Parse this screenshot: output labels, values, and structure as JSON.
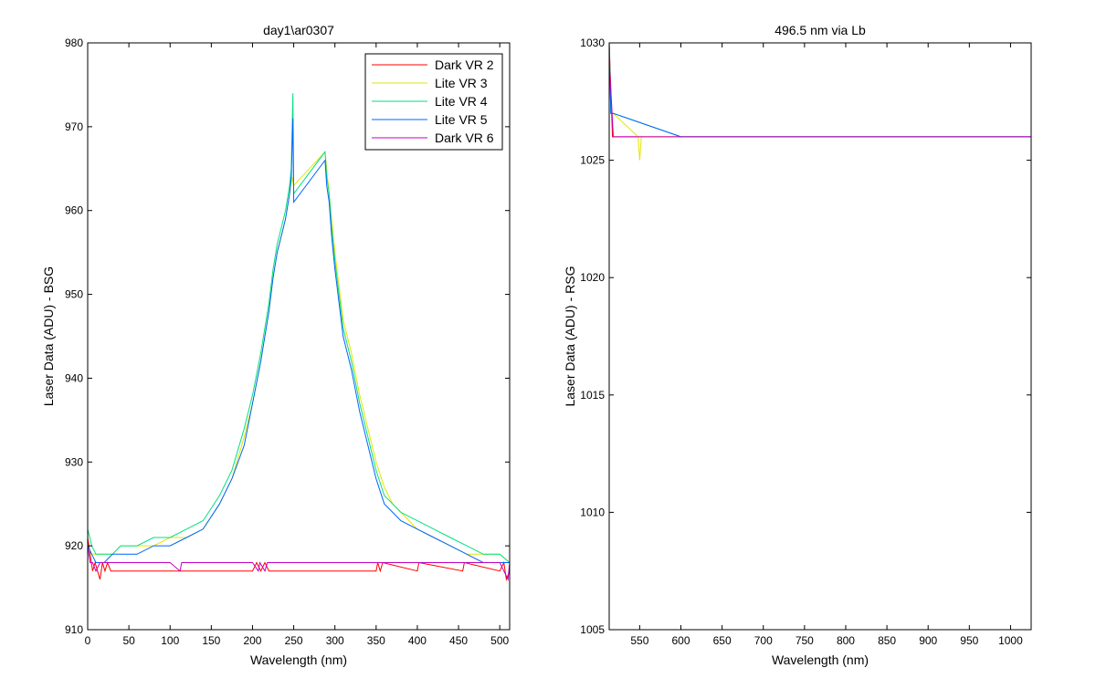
{
  "chart_data": [
    {
      "type": "line",
      "title": "day1\\ar0307",
      "xlabel": "Wavelength (nm)",
      "ylabel": "Laser Data (ADU) - BSG",
      "xlim": [
        0,
        512
      ],
      "ylim": [
        910,
        980
      ],
      "x_ticks": [
        0,
        50,
        100,
        150,
        200,
        250,
        300,
        350,
        400,
        450,
        500
      ],
      "y_ticks": [
        910,
        920,
        930,
        940,
        950,
        960,
        970,
        980
      ],
      "legend_position": "top-right",
      "series": [
        {
          "name": "Dark VR 2",
          "color": "#ff0000",
          "x": [
            0,
            3,
            6,
            9,
            12,
            15,
            18,
            21,
            24,
            28,
            35,
            60,
            100,
            150,
            200,
            205,
            210,
            215,
            220,
            250,
            300,
            350,
            352,
            355,
            358,
            400,
            402,
            455,
            457,
            500,
            505,
            508,
            512
          ],
          "y": [
            921,
            919,
            917,
            918,
            917,
            916,
            918,
            917,
            918,
            917,
            917,
            917,
            917,
            917,
            917,
            918,
            917,
            918,
            917,
            917,
            917,
            917,
            918,
            917,
            918,
            917,
            918,
            917,
            918,
            917,
            918,
            916,
            917
          ]
        },
        {
          "name": "Lite VR 3",
          "color": "#e6e600",
          "x": [
            0,
            5,
            10,
            20,
            30,
            40,
            60,
            80,
            100,
            120,
            140,
            160,
            175,
            190,
            200,
            210,
            220,
            225,
            230,
            235,
            240,
            245,
            248,
            250,
            288,
            290,
            295,
            300,
            305,
            310,
            320,
            330,
            340,
            350,
            360,
            370,
            380,
            400,
            420,
            440,
            460,
            480,
            500,
            512
          ],
          "y": [
            920,
            919,
            919,
            919,
            919,
            920,
            920,
            920,
            921,
            921,
            922,
            925,
            928,
            933,
            937,
            942,
            948,
            952,
            955,
            957,
            959,
            962,
            964,
            963,
            967,
            965,
            960,
            955,
            951,
            947,
            943,
            938,
            934,
            930,
            927,
            925,
            924,
            922,
            921,
            920,
            919,
            919,
            919,
            918
          ]
        },
        {
          "name": "Lite VR 4",
          "color": "#00e080",
          "x": [
            0,
            5,
            10,
            20,
            30,
            40,
            60,
            80,
            100,
            120,
            140,
            160,
            175,
            190,
            200,
            210,
            220,
            225,
            230,
            235,
            240,
            245,
            247,
            249,
            250,
            288,
            290,
            293,
            296,
            300,
            305,
            310,
            320,
            330,
            340,
            350,
            360,
            370,
            380,
            400,
            420,
            440,
            460,
            480,
            500,
            512
          ],
          "y": [
            922,
            920,
            919,
            919,
            919,
            920,
            920,
            921,
            921,
            922,
            923,
            926,
            929,
            934,
            938,
            943,
            949,
            953,
            956,
            958,
            960,
            963,
            965,
            974,
            962,
            967,
            964,
            962,
            958,
            954,
            950,
            946,
            942,
            937,
            933,
            929,
            926,
            925,
            924,
            923,
            922,
            921,
            920,
            919,
            919,
            918
          ]
        },
        {
          "name": "Lite VR 5",
          "color": "#0064ff",
          "x": [
            0,
            5,
            10,
            20,
            30,
            40,
            60,
            80,
            100,
            120,
            140,
            160,
            175,
            190,
            200,
            210,
            220,
            225,
            230,
            235,
            240,
            245,
            247,
            249,
            250,
            288,
            290,
            293,
            296,
            300,
            305,
            310,
            320,
            330,
            340,
            350,
            360,
            370,
            380,
            400,
            420,
            440,
            460,
            480,
            500,
            512
          ],
          "y": [
            920,
            919,
            918,
            918,
            919,
            919,
            919,
            920,
            920,
            921,
            922,
            925,
            928,
            932,
            937,
            942,
            948,
            952,
            955,
            957,
            959,
            962,
            964,
            971,
            961,
            966,
            963,
            961,
            957,
            953,
            949,
            945,
            941,
            936,
            932,
            928,
            925,
            924,
            923,
            922,
            921,
            920,
            919,
            918,
            918,
            918
          ]
        },
        {
          "name": "Dark VR 6",
          "color": "#c000c0",
          "x": [
            0,
            3,
            6,
            10,
            15,
            20,
            30,
            60,
            100,
            112,
            114,
            150,
            200,
            207,
            209,
            215,
            218,
            250,
            300,
            350,
            400,
            450,
            500,
            510,
            512
          ],
          "y": [
            920,
            918,
            918,
            917,
            918,
            918,
            918,
            918,
            918,
            917,
            918,
            918,
            918,
            917,
            918,
            917,
            918,
            918,
            918,
            918,
            918,
            918,
            918,
            916,
            918
          ]
        }
      ]
    },
    {
      "type": "line",
      "title": "496.5 nm via Lb",
      "xlabel": "Wavelength (nm)",
      "ylabel": "Laser Data (ADU) - RSG",
      "xlim": [
        513,
        1025
      ],
      "ylim": [
        1005,
        1030
      ],
      "x_ticks": [
        550,
        600,
        650,
        700,
        750,
        800,
        850,
        900,
        950,
        1000
      ],
      "y_ticks": [
        1005,
        1010,
        1015,
        1020,
        1025,
        1030
      ],
      "series": [
        {
          "name": "Dark VR 2",
          "color": "#ff0000",
          "x": [
            513,
            515,
            517,
            520,
            600,
            700,
            800,
            900,
            1000,
            1025
          ],
          "y": [
            1030,
            1028,
            1026,
            1026,
            1026,
            1026,
            1026,
            1026,
            1026,
            1026
          ]
        },
        {
          "name": "Lite VR 3",
          "color": "#e6e600",
          "x": [
            513,
            515,
            518,
            548,
            550,
            552,
            600,
            700,
            800,
            900,
            1000,
            1025
          ],
          "y": [
            1030,
            1027,
            1027,
            1026,
            1025,
            1026,
            1026,
            1026,
            1026,
            1026,
            1026,
            1026
          ]
        },
        {
          "name": "Lite VR 4",
          "color": "#00e080",
          "x": [
            513,
            515,
            518,
            600,
            700,
            800,
            900,
            1000,
            1025
          ],
          "y": [
            1030,
            1027,
            1027,
            1026,
            1026,
            1026,
            1026,
            1026,
            1026
          ]
        },
        {
          "name": "Lite VR 5",
          "color": "#0064ff",
          "x": [
            513,
            515,
            518,
            600,
            700,
            800,
            900,
            1000,
            1025
          ],
          "y": [
            1030,
            1027,
            1027,
            1026,
            1026,
            1026,
            1026,
            1026,
            1026
          ]
        },
        {
          "name": "Dark VR 6",
          "color": "#c000c0",
          "x": [
            513,
            515,
            518,
            600,
            700,
            800,
            900,
            1000,
            1025
          ],
          "y": [
            1029,
            1028,
            1026,
            1026,
            1026,
            1026,
            1026,
            1026,
            1026
          ]
        }
      ]
    }
  ]
}
